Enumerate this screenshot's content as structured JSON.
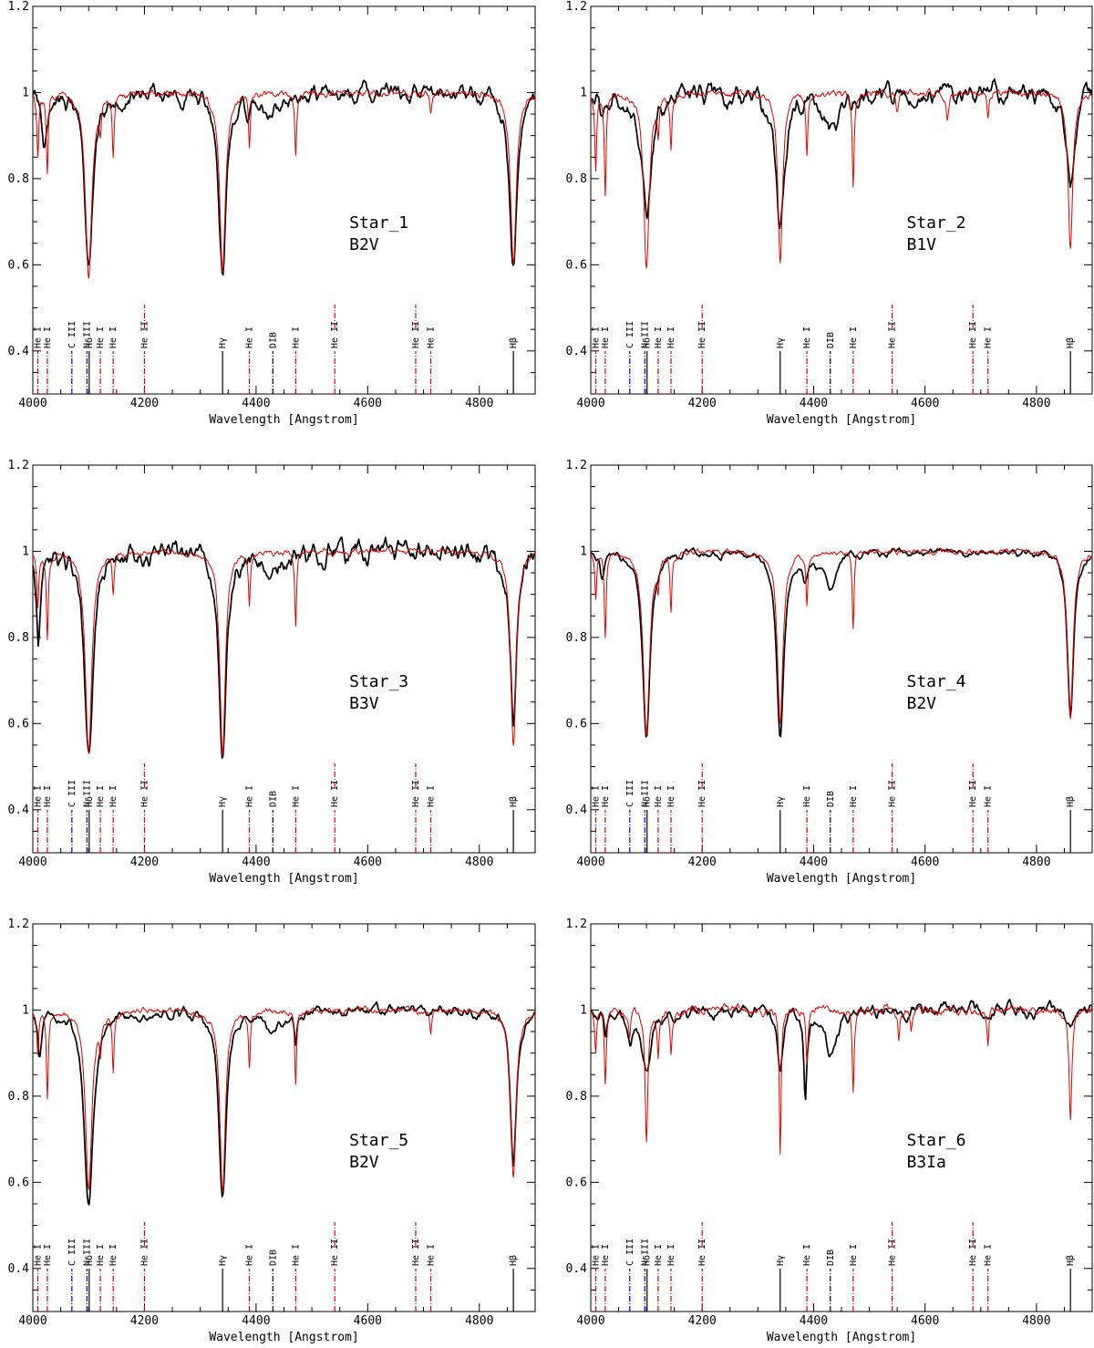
{
  "chart_data": [
    {
      "type": "line",
      "name": "Star_1",
      "spectral_type": "B2V",
      "xlabel": "Wavelength [Angstrom]",
      "ylabel": "",
      "xlim": [
        4000,
        4900
      ],
      "ylim": [
        0.3,
        1.2
      ],
      "xticks": [
        4000,
        4200,
        4400,
        4600,
        4800
      ],
      "xtick_labels": [
        "4000",
        "4200",
        "4400",
        "4600",
        "4800"
      ],
      "yticks": [
        0.4,
        0.6,
        0.8,
        1,
        1.2
      ],
      "ytick_labels": [
        "0.4",
        "0.6",
        "0.8",
        "1",
        "1.2"
      ],
      "series": [
        {
          "color": "#000000",
          "style": "observed",
          "noise": 0.035,
          "absorption": [
            [
              4100,
              0.41,
              9
            ],
            [
              4340,
              0.42,
              8
            ],
            [
              4861,
              0.41,
              8
            ],
            [
              4020,
              0.12,
              5
            ],
            [
              4428,
              0.05,
              18
            ],
            [
              4385,
              0.06,
              5
            ]
          ],
          "x": [
            4000,
            4100,
            4340,
            4861,
            4900
          ],
          "y": [
            0.86,
            0.56,
            0.58,
            0.59,
            1.0
          ]
        },
        {
          "color": "#e00000",
          "style": "model",
          "noise": 0.012,
          "absorption": [
            [
              4100,
              0.42,
              7
            ],
            [
              4340,
              0.42,
              6
            ],
            [
              4861,
              0.4,
              6
            ],
            [
              4026,
              0.18,
              2
            ],
            [
              4009,
              0.15,
              2
            ],
            [
              4144,
              0.13,
              2
            ],
            [
              4121,
              0.06,
              2
            ],
            [
              4388,
              0.12,
              2
            ],
            [
              4471,
              0.15,
              2
            ],
            [
              4713,
              0.05,
              2
            ],
            [
              4922,
              0.05,
              2
            ]
          ],
          "x": [
            4026,
            4100,
            4340,
            4471,
            4861
          ],
          "y": [
            0.82,
            0.58,
            0.58,
            0.85,
            0.6
          ]
        }
      ]
    },
    {
      "type": "line",
      "name": "Star_2",
      "spectral_type": "B1V",
      "xlabel": "Wavelength [Angstrom]",
      "ylabel": "",
      "xlim": [
        4000,
        4900
      ],
      "ylim": [
        0.3,
        1.2
      ],
      "xticks": [
        4000,
        4200,
        4400,
        4600,
        4800
      ],
      "xtick_labels": [
        "4000",
        "4200",
        "4400",
        "4600",
        "4800"
      ],
      "yticks": [
        0.4,
        0.6,
        0.8,
        1,
        1.2
      ],
      "ytick_labels": [
        "0.4",
        "0.6",
        "0.8",
        "1",
        "1.2"
      ],
      "series": [
        {
          "color": "#000000",
          "style": "observed",
          "noise": 0.04,
          "absorption": [
            [
              4100,
              0.28,
              12
            ],
            [
              4340,
              0.3,
              10
            ],
            [
              4861,
              0.2,
              9
            ],
            [
              4430,
              0.1,
              16
            ],
            [
              4020,
              0.06,
              4
            ]
          ],
          "x": [
            4000,
            4100,
            4340,
            4861,
            4900
          ],
          "y": [
            1.0,
            0.72,
            0.68,
            0.8,
            1.0
          ]
        },
        {
          "color": "#e00000",
          "style": "model",
          "noise": 0.012,
          "absorption": [
            [
              4100,
              0.41,
              6
            ],
            [
              4340,
              0.4,
              5
            ],
            [
              4861,
              0.37,
              5
            ],
            [
              4026,
              0.24,
              2
            ],
            [
              4009,
              0.17,
              2
            ],
            [
              4144,
              0.12,
              2
            ],
            [
              4121,
              0.08,
              2
            ],
            [
              4388,
              0.14,
              2
            ],
            [
              4471,
              0.22,
              2
            ],
            [
              4713,
              0.06,
              2
            ],
            [
              4640,
              0.06,
              3
            ],
            [
              4550,
              0.05,
              3
            ]
          ],
          "x": [
            4026,
            4100,
            4340,
            4471,
            4861
          ],
          "y": [
            0.76,
            0.59,
            0.6,
            0.78,
            0.63
          ]
        }
      ]
    },
    {
      "type": "line",
      "name": "Star_3",
      "spectral_type": "B3V",
      "xlabel": "Wavelength [Angstrom]",
      "ylabel": "",
      "xlim": [
        4000,
        4900
      ],
      "ylim": [
        0.3,
        1.2
      ],
      "xticks": [
        4000,
        4200,
        4400,
        4600,
        4800
      ],
      "xtick_labels": [
        "4000",
        "4200",
        "4400",
        "4600",
        "4800"
      ],
      "yticks": [
        0.4,
        0.6,
        0.8,
        1,
        1.2
      ],
      "ytick_labels": [
        "0.4",
        "0.6",
        "0.8",
        "1",
        "1.2"
      ],
      "series": [
        {
          "color": "#000000",
          "style": "observed",
          "noise": 0.04,
          "absorption": [
            [
              4100,
              0.49,
              9
            ],
            [
              4340,
              0.46,
              8
            ],
            [
              4861,
              0.39,
              7
            ],
            [
              4010,
              0.2,
              4
            ],
            [
              4428,
              0.05,
              16
            ]
          ],
          "x": [
            4000,
            4100,
            4340,
            4800,
            4861
          ],
          "y": [
            0.95,
            0.51,
            0.54,
            1.13,
            0.66
          ]
        },
        {
          "color": "#e00000",
          "style": "model",
          "noise": 0.01,
          "absorption": [
            [
              4100,
              0.47,
              7
            ],
            [
              4340,
              0.47,
              6
            ],
            [
              4861,
              0.45,
              6
            ],
            [
              4026,
              0.2,
              2
            ],
            [
              4009,
              0.12,
              2
            ],
            [
              4144,
              0.09,
              2
            ],
            [
              4388,
              0.12,
              2
            ],
            [
              4471,
              0.17,
              2
            ]
          ],
          "x": [
            4026,
            4100,
            4340,
            4471,
            4861
          ],
          "y": [
            0.8,
            0.53,
            0.53,
            0.84,
            0.55
          ]
        }
      ]
    },
    {
      "type": "line",
      "name": "Star_4",
      "spectral_type": "B2V",
      "xlabel": "Wavelength [Angstrom]",
      "ylabel": "",
      "xlim": [
        4000,
        4900
      ],
      "ylim": [
        0.3,
        1.2
      ],
      "xticks": [
        4000,
        4200,
        4400,
        4600,
        4800
      ],
      "xtick_labels": [
        "4000",
        "4200",
        "4400",
        "4600",
        "4800"
      ],
      "yticks": [
        0.4,
        0.6,
        0.8,
        1,
        1.2
      ],
      "ytick_labels": [
        "0.4",
        "0.6",
        "0.8",
        "1",
        "1.2"
      ],
      "series": [
        {
          "color": "#000000",
          "style": "observed",
          "noise": 0.015,
          "absorption": [
            [
              4100,
              0.43,
              8
            ],
            [
              4340,
              0.42,
              8
            ],
            [
              4861,
              0.38,
              7
            ],
            [
              4430,
              0.08,
              15
            ],
            [
              4385,
              0.05,
              5
            ],
            [
              4020,
              0.06,
              4
            ]
          ],
          "x": [
            4000,
            4100,
            4340,
            4861,
            4900
          ],
          "y": [
            0.96,
            0.56,
            0.58,
            0.62,
            1.0
          ]
        },
        {
          "color": "#e00000",
          "style": "model",
          "noise": 0.01,
          "absorption": [
            [
              4100,
              0.42,
              7
            ],
            [
              4340,
              0.4,
              6
            ],
            [
              4861,
              0.39,
              6
            ],
            [
              4026,
              0.2,
              2
            ],
            [
              4009,
              0.1,
              2
            ],
            [
              4144,
              0.13,
              2
            ],
            [
              4121,
              0.06,
              2
            ],
            [
              4388,
              0.12,
              2
            ],
            [
              4471,
              0.18,
              2
            ]
          ],
          "x": [
            4026,
            4100,
            4340,
            4471,
            4861
          ],
          "y": [
            0.8,
            0.57,
            0.59,
            0.82,
            0.6
          ]
        }
      ]
    },
    {
      "type": "line",
      "name": "Star_5",
      "spectral_type": "B2V",
      "xlabel": "Wavelength [Angstrom]",
      "ylabel": "",
      "xlim": [
        4000,
        4900
      ],
      "ylim": [
        0.3,
        1.2
      ],
      "xticks": [
        4000,
        4200,
        4400,
        4600,
        4800
      ],
      "xtick_labels": [
        "4000",
        "4200",
        "4400",
        "4600",
        "4800"
      ],
      "yticks": [
        0.4,
        0.6,
        0.8,
        1,
        1.2
      ],
      "ytick_labels": [
        "0.4",
        "0.6",
        "0.8",
        "1",
        "1.2"
      ],
      "series": [
        {
          "color": "#000000",
          "style": "observed",
          "noise": 0.02,
          "absorption": [
            [
              4100,
              0.45,
              10
            ],
            [
              4340,
              0.43,
              8
            ],
            [
              4861,
              0.36,
              7
            ],
            [
              4430,
              0.06,
              14
            ],
            [
              4012,
              0.1,
              4
            ],
            [
              4471,
              0.08,
              3
            ]
          ],
          "x": [
            4000,
            4100,
            4340,
            4861,
            4900
          ],
          "y": [
            0.99,
            0.54,
            0.56,
            0.62,
            1.1
          ]
        },
        {
          "color": "#e00000",
          "style": "model",
          "noise": 0.01,
          "absorption": [
            [
              4100,
              0.42,
              7
            ],
            [
              4340,
              0.42,
              6
            ],
            [
              4861,
              0.39,
              6
            ],
            [
              4026,
              0.2,
              2
            ],
            [
              4009,
              0.1,
              2
            ],
            [
              4144,
              0.14,
              2
            ],
            [
              4121,
              0.07,
              2
            ],
            [
              4388,
              0.13,
              2
            ],
            [
              4471,
              0.18,
              2
            ],
            [
              4713,
              0.05,
              2
            ]
          ],
          "x": [
            4026,
            4100,
            4340,
            4471,
            4861
          ],
          "y": [
            0.8,
            0.57,
            0.58,
            0.82,
            0.6
          ]
        }
      ]
    },
    {
      "type": "line",
      "name": "Star_6",
      "spectral_type": "B3Ia",
      "xlabel": "Wavelength [Angstrom]",
      "ylabel": "",
      "xlim": [
        4000,
        4900
      ],
      "ylim": [
        0.3,
        1.2
      ],
      "xticks": [
        4000,
        4200,
        4400,
        4600,
        4800
      ],
      "xtick_labels": [
        "4000",
        "4200",
        "4400",
        "4600",
        "4800"
      ],
      "yticks": [
        0.4,
        0.6,
        0.8,
        1,
        1.2
      ],
      "ytick_labels": [
        "0.4",
        "0.6",
        "0.8",
        "1",
        "1.2"
      ],
      "series": [
        {
          "color": "#000000",
          "style": "observed",
          "noise": 0.025,
          "absorption": [
            [
              4100,
              0.13,
              12
            ],
            [
              4340,
              0.14,
              6
            ],
            [
              4385,
              0.2,
              3
            ],
            [
              4430,
              0.1,
              14
            ],
            [
              4861,
              0.05,
              6
            ],
            [
              4071,
              0.06,
              5
            ],
            [
              4026,
              0.06,
              3
            ]
          ],
          "x": [
            4000,
            4100,
            4340,
            4385,
            4861
          ],
          "y": [
            1.0,
            0.87,
            0.86,
            0.78,
            0.95
          ]
        },
        {
          "color": "#e00000",
          "style": "model",
          "noise": 0.015,
          "absorption": [
            [
              4100,
              0.3,
              3
            ],
            [
              4340,
              0.33,
              2
            ],
            [
              4861,
              0.26,
              3
            ],
            [
              4026,
              0.17,
              2
            ],
            [
              4009,
              0.1,
              2
            ],
            [
              4144,
              0.1,
              2
            ],
            [
              4121,
              0.1,
              2
            ],
            [
              4388,
              0.12,
              2
            ],
            [
              4471,
              0.19,
              2
            ],
            [
              4713,
              0.08,
              2
            ],
            [
              4070,
              0.06,
              2
            ],
            [
              4553,
              0.07,
              2
            ],
            [
              4575,
              0.05,
              2
            ]
          ],
          "x": [
            4026,
            4100,
            4340,
            4471,
            4861
          ],
          "y": [
            0.83,
            0.69,
            0.67,
            0.81,
            0.74
          ]
        }
      ]
    }
  ],
  "line_ids": [
    {
      "label": "He I",
      "wl": 4009,
      "color": "#e00000",
      "dash": "dashdot"
    },
    {
      "label": "He I",
      "wl": 4026,
      "color": "#e00000",
      "dash": "dashdot"
    },
    {
      "label": "C III",
      "wl": 4070,
      "color": "#0000c0",
      "dash": "dashdot"
    },
    {
      "label": "N III",
      "wl": 4097,
      "color": "#0000c0",
      "dash": "dashdot"
    },
    {
      "label": "Hδ",
      "wl": 4101,
      "color": "#000000",
      "dash": "solid"
    },
    {
      "label": "He I",
      "wl": 4121,
      "color": "#e00000",
      "dash": "dashdot"
    },
    {
      "label": "He I",
      "wl": 4144,
      "color": "#e00000",
      "dash": "dashdot"
    },
    {
      "label": "He II",
      "wl": 4200,
      "color": "#e00000",
      "dash": "dashdot"
    },
    {
      "label": "Hγ",
      "wl": 4340,
      "color": "#000000",
      "dash": "solid"
    },
    {
      "label": "He I",
      "wl": 4388,
      "color": "#e00000",
      "dash": "dashdot"
    },
    {
      "label": "DIB",
      "wl": 4430,
      "color": "#000000",
      "dash": "dashdot"
    },
    {
      "label": "He I",
      "wl": 4471,
      "color": "#e00000",
      "dash": "dashdot"
    },
    {
      "label": "He II",
      "wl": 4541,
      "color": "#e00000",
      "dash": "dashdot"
    },
    {
      "label": "He II",
      "wl": 4686,
      "color": "#e00000",
      "dash": "dashdot"
    },
    {
      "label": "He I",
      "wl": 4713,
      "color": "#e00000",
      "dash": "dashdot"
    },
    {
      "label": "Hβ",
      "wl": 4861,
      "color": "#000000",
      "dash": "solid"
    }
  ]
}
